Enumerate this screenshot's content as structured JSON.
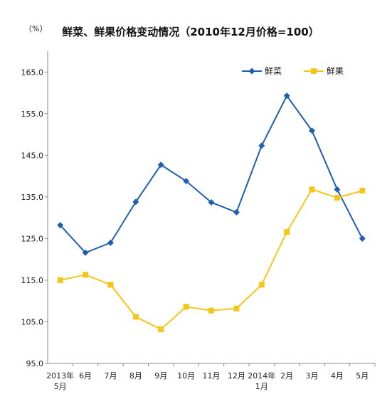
{
  "chart_data": {
    "type": "line",
    "title": "鲜菜、鲜果价格变动情况（2010年12月价格=100）",
    "unit_label": "（%）",
    "categories": [
      [
        "2013年",
        "5月"
      ],
      [
        "6月"
      ],
      [
        "7月"
      ],
      [
        "8月"
      ],
      [
        "9月"
      ],
      [
        "10月"
      ],
      [
        "11月"
      ],
      [
        "12月"
      ],
      [
        "2014年",
        "1月"
      ],
      [
        "2月"
      ],
      [
        "3月"
      ],
      [
        "4月"
      ],
      [
        "5月"
      ]
    ],
    "ylim": [
      95.0,
      170.0
    ],
    "yticks": [
      "95.0",
      "105.0",
      "115.0",
      "125.0",
      "135.0",
      "145.0",
      "155.0",
      "165.0"
    ],
    "ytick_values": [
      95,
      105,
      115,
      125,
      135,
      145,
      155,
      165
    ],
    "series": [
      {
        "name": "鲜菜",
        "color": "#1f5fb0",
        "marker": "diamond",
        "values": [
          128.2,
          121.6,
          124.0,
          133.8,
          142.7,
          138.8,
          133.7,
          131.3,
          147.3,
          159.3,
          150.9,
          136.8,
          125.0
        ]
      },
      {
        "name": "鲜果",
        "color": "#f5c518",
        "marker": "square",
        "values": [
          115.0,
          116.3,
          113.9,
          106.2,
          103.2,
          108.6,
          107.7,
          108.2,
          113.9,
          126.6,
          136.8,
          134.8,
          136.5
        ]
      }
    ],
    "legend_position": "top-right",
    "grid": false
  }
}
